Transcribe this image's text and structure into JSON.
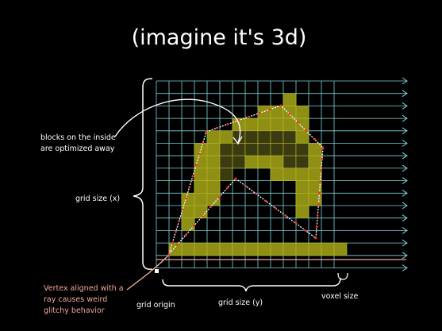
{
  "title": "(imagine it's 3d)",
  "annotations": {
    "inside_blocks": [
      "blocks on the inside",
      "are optimized away"
    ],
    "grid_size_x": "grid size (x)",
    "vertex_aligned": [
      "Vertex aligned with a",
      "ray causes weird",
      "glitchy behavior"
    ],
    "grid_origin": "grid origin",
    "grid_size_y": "grid size (y)",
    "voxel_size": "voxel size"
  },
  "colors": {
    "background": "#000000",
    "grid_line": "#7fd3da",
    "voxel_fill": "#8f8f14",
    "voxel_inner": "#3b3b12",
    "voxel_stroke": "#b9b92a",
    "polygon_edge": "#ffffff",
    "intersection_point": "#ff2a2a",
    "highlight_ray": "#f3a79c",
    "warning_text": "#f3a79c",
    "text": "#ffffff"
  },
  "grid": {
    "cols": 14,
    "rows": 15
  },
  "voxels": {
    "rows": [
      ".............",
      "..........#..",
      "........####.",
      "......######.",
      "....########.",
      "...##########",
      "...##########",
      "...###...####",
      "...##......##",
      "..###......##",
      "..##.......#.",
      "..#..........",
      ".............",
      ".##############"
    ],
    "inner_cells": [
      [
        6,
        4
      ],
      [
        7,
        4
      ],
      [
        8,
        4
      ],
      [
        9,
        4
      ],
      [
        10,
        4
      ],
      [
        5,
        5
      ],
      [
        6,
        5
      ],
      [
        7,
        5
      ],
      [
        8,
        5
      ],
      [
        9,
        5
      ],
      [
        10,
        5
      ],
      [
        11,
        5
      ],
      [
        5,
        6
      ],
      [
        6,
        6
      ],
      [
        10,
        6
      ],
      [
        11,
        6
      ],
      [
        5,
        7
      ]
    ]
  }
}
